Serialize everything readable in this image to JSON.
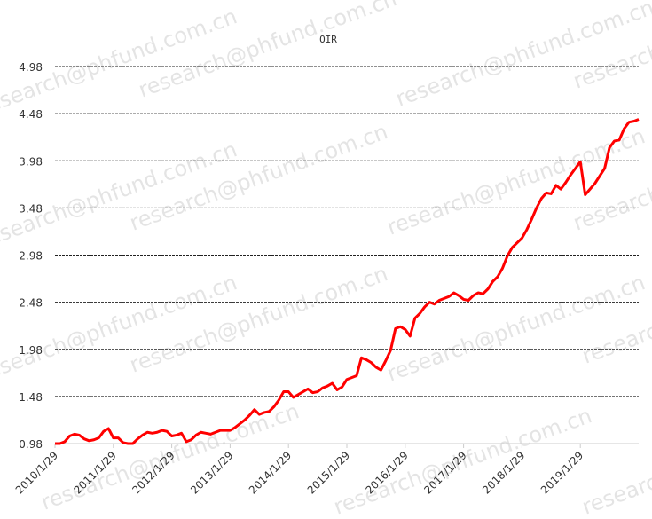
{
  "chart_data": {
    "type": "line",
    "title": "OIR",
    "watermark": "research@phfund.com.cn",
    "categories": [
      "2010/1/29",
      null,
      null,
      null,
      null,
      null,
      null,
      null,
      null,
      null,
      null,
      null,
      "2011/1/29",
      null,
      null,
      null,
      null,
      null,
      null,
      null,
      null,
      null,
      null,
      null,
      "2012/1/29",
      null,
      null,
      null,
      null,
      null,
      null,
      null,
      null,
      null,
      null,
      null,
      "2013/1/29",
      null,
      null,
      null,
      null,
      null,
      null,
      null,
      null,
      null,
      null,
      null,
      "2014/1/29",
      null,
      null,
      null,
      null,
      null,
      null,
      null,
      null,
      null,
      null,
      null,
      "2015/1/29",
      null,
      null,
      null,
      null,
      null,
      null,
      null,
      null,
      null,
      null,
      null,
      "2016/1/29",
      null,
      null,
      null,
      null,
      null,
      null,
      null,
      null,
      null,
      null,
      null,
      "2017/1/29",
      null,
      null,
      null,
      null,
      null,
      null,
      null,
      null,
      null,
      null,
      null,
      "2018/1/29",
      null,
      null,
      null,
      null,
      null,
      null,
      null,
      null,
      null,
      null,
      null,
      "2019/1/29",
      null,
      null,
      null,
      null,
      null,
      null,
      null,
      null,
      null,
      null,
      null,
      null
    ],
    "values": [
      0.98,
      0.98,
      1.0,
      1.06,
      1.08,
      1.07,
      1.03,
      1.01,
      1.02,
      1.04,
      1.11,
      1.14,
      1.04,
      1.04,
      0.99,
      0.98,
      0.98,
      1.03,
      1.07,
      1.1,
      1.09,
      1.1,
      1.12,
      1.11,
      1.06,
      1.07,
      1.09,
      1.0,
      1.02,
      1.07,
      1.1,
      1.09,
      1.08,
      1.1,
      1.12,
      1.12,
      1.12,
      1.15,
      1.19,
      1.23,
      1.28,
      1.34,
      1.29,
      1.31,
      1.32,
      1.37,
      1.44,
      1.53,
      1.53,
      1.47,
      1.5,
      1.53,
      1.56,
      1.52,
      1.53,
      1.57,
      1.59,
      1.62,
      1.55,
      1.58,
      1.66,
      1.68,
      1.7,
      1.89,
      1.87,
      1.84,
      1.79,
      1.76,
      1.86,
      1.97,
      2.2,
      2.22,
      2.19,
      2.12,
      2.31,
      2.36,
      2.43,
      2.48,
      2.46,
      2.5,
      2.52,
      2.54,
      2.58,
      2.55,
      2.51,
      2.5,
      2.55,
      2.58,
      2.57,
      2.62,
      2.7,
      2.75,
      2.84,
      2.97,
      3.06,
      3.11,
      3.16,
      3.25,
      3.36,
      3.48,
      3.58,
      3.64,
      3.63,
      3.72,
      3.68,
      3.75,
      3.83,
      3.9,
      3.97,
      3.62,
      3.68,
      3.74,
      3.82,
      3.9,
      4.12,
      4.19,
      4.2,
      4.32,
      4.39,
      4.4,
      4.42
    ],
    "color": "#ff0000",
    "ylim": [
      0.98,
      4.98
    ],
    "yticks": [
      0.98,
      1.48,
      1.98,
      2.48,
      2.98,
      3.48,
      3.98,
      4.48,
      4.98
    ],
    "grid": true
  }
}
